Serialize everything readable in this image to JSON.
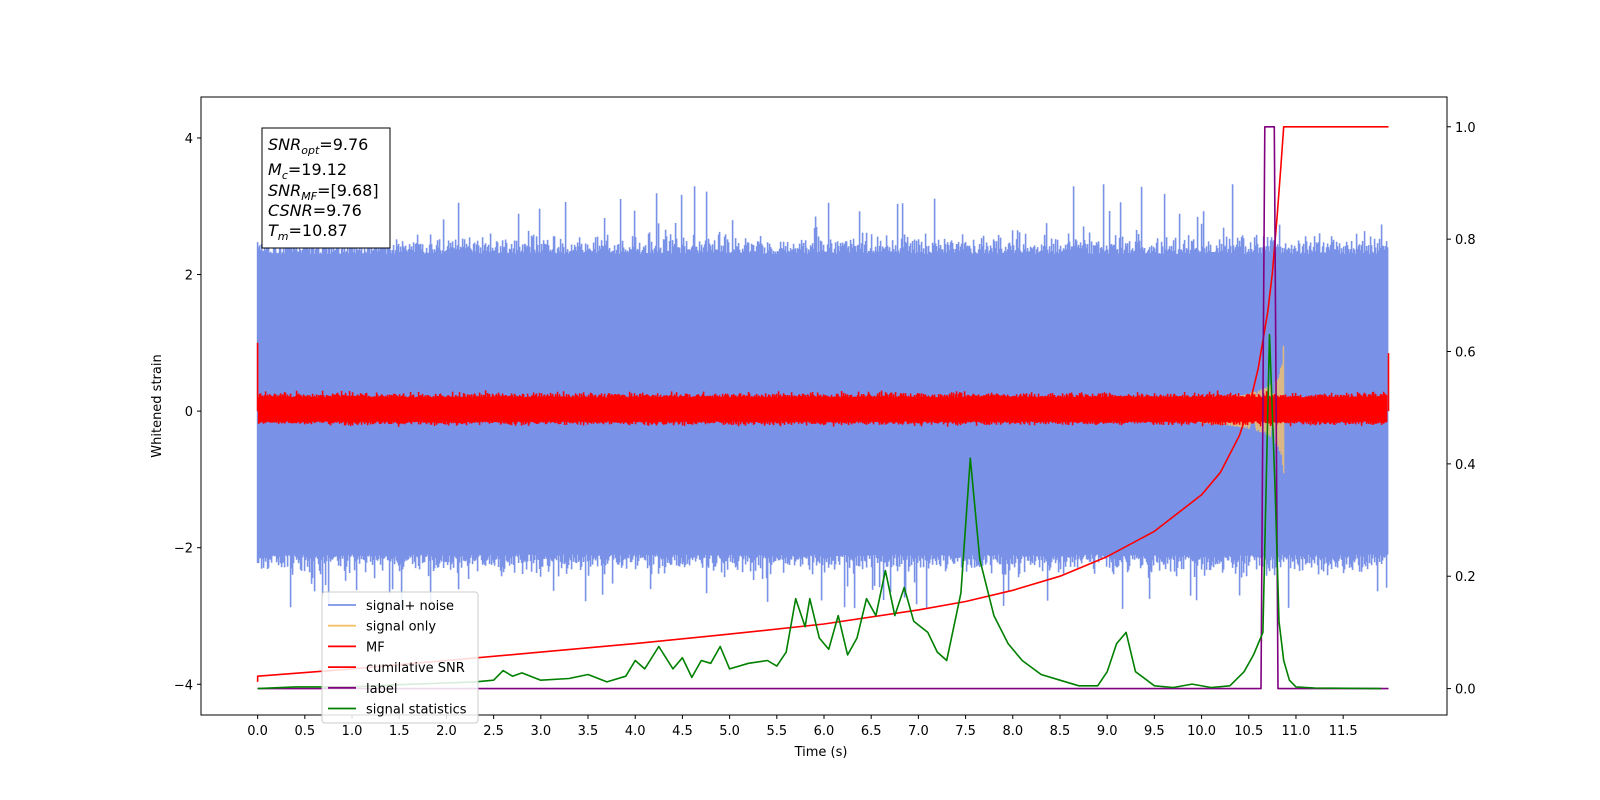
{
  "chart_data": {
    "type": "line",
    "xlabel": "Time (s)",
    "ylabel": "Whitened strain",
    "xlim": [
      -0.6,
      12.6
    ],
    "ylim": [
      -4.45,
      4.6
    ],
    "y2lim": [
      -0.047,
      1.053
    ],
    "x_ticks": [
      "0.0",
      "0.5",
      "1.0",
      "1.5",
      "2.0",
      "2.5",
      "3.0",
      "3.5",
      "4.0",
      "4.5",
      "5.0",
      "5.5",
      "6.0",
      "6.5",
      "7.0",
      "7.5",
      "8.0",
      "8.5",
      "9.0",
      "9.5",
      "10.0",
      "10.5",
      "11.0",
      "11.5"
    ],
    "y_ticks": [
      "4",
      "2",
      "0",
      "−2",
      "−4"
    ],
    "y2_ticks": [
      "1.0",
      "0.8",
      "0.6",
      "0.4",
      "0.2",
      "0.0"
    ],
    "info_box": {
      "snr_opt": {
        "main": "SNR",
        "sub": "opt",
        "value": "=9.76"
      },
      "mc": {
        "main": "M",
        "sub": "c",
        "value": "=19.12"
      },
      "snr_mf": {
        "main": "SNR",
        "sub": "MF",
        "value": "=[9.68]"
      },
      "csnr": {
        "main": "CSNR",
        "value": "=9.76"
      },
      "tm": {
        "main": "T",
        "sub": "m",
        "value": "=10.87"
      }
    },
    "legend": {
      "position": "lower-left",
      "entries": [
        {
          "label": "signal+ noise",
          "color": "#7992e8"
        },
        {
          "label": "signal only",
          "color": "#f5c26b"
        },
        {
          "label": "MF",
          "color": "#ff0000"
        },
        {
          "label": "cumilative SNR",
          "color": "#ff0000"
        },
        {
          "label": "label",
          "color": "#800080"
        },
        {
          "label": "signal statistics",
          "color": "#008000"
        }
      ]
    },
    "series": [
      {
        "name": "signal+ noise",
        "axis": "left",
        "color": "#7992e8",
        "kind": "noise band",
        "x_range": [
          0.0,
          11.98
        ],
        "typical": [
          -2.1,
          2.3
        ],
        "min": -3.7,
        "max": 4.15
      },
      {
        "name": "signal only",
        "axis": "left",
        "color": "#f5c26b",
        "kind": "chirp",
        "x_range": [
          9.7,
          10.87
        ],
        "peak_amplitude": 1.0
      },
      {
        "name": "MF",
        "axis": "left",
        "color": "#ff0000",
        "kind": "noise band",
        "x_range": [
          0.0,
          11.98
        ],
        "typical": [
          -0.15,
          0.2
        ],
        "start": 1.0,
        "end": 0.85
      },
      {
        "name": "cumilative SNR",
        "axis": "right",
        "color": "#ff0000",
        "x": [
          0.0,
          0.001,
          1,
          2,
          3,
          4,
          5,
          6,
          7,
          7.5,
          8,
          8.5,
          9,
          9.5,
          10,
          10.2,
          10.4,
          10.5,
          10.6,
          10.7,
          10.75,
          10.8,
          10.84,
          10.87,
          10.9,
          11.98
        ],
        "y": [
          0.012,
          0.022,
          0.035,
          0.05,
          0.065,
          0.08,
          0.097,
          0.115,
          0.14,
          0.155,
          0.175,
          0.2,
          0.235,
          0.28,
          0.345,
          0.385,
          0.45,
          0.5,
          0.57,
          0.67,
          0.74,
          0.84,
          0.93,
          1.0,
          1.0,
          1.0
        ]
      },
      {
        "name": "label",
        "axis": "right",
        "color": "#800080",
        "x": [
          0.0,
          10.63,
          10.67,
          10.77,
          10.81,
          11.98
        ],
        "y": [
          0.0,
          0.0,
          1.0,
          1.0,
          0.0,
          0.0
        ]
      },
      {
        "name": "signal statistics",
        "axis": "right",
        "color": "#008000",
        "x": [
          0.0,
          0.4,
          1.0,
          1.5,
          2.0,
          2.3,
          2.5,
          2.6,
          2.7,
          2.8,
          3.0,
          3.3,
          3.5,
          3.7,
          3.9,
          4.0,
          4.1,
          4.25,
          4.4,
          4.5,
          4.6,
          4.7,
          4.8,
          4.9,
          5.0,
          5.2,
          5.4,
          5.5,
          5.6,
          5.7,
          5.8,
          5.85,
          5.95,
          6.05,
          6.15,
          6.25,
          6.35,
          6.45,
          6.55,
          6.65,
          6.75,
          6.85,
          6.95,
          7.1,
          7.2,
          7.3,
          7.45,
          7.55,
          7.65,
          7.8,
          7.95,
          8.1,
          8.3,
          8.5,
          8.7,
          8.9,
          9.0,
          9.1,
          9.2,
          9.3,
          9.5,
          9.7,
          9.9,
          10.1,
          10.3,
          10.45,
          10.55,
          10.65,
          10.72,
          10.78,
          10.82,
          10.87,
          10.93,
          11.0,
          11.2,
          11.9
        ],
        "y": [
          0.0,
          0.003,
          0.003,
          0.007,
          0.01,
          0.012,
          0.015,
          0.032,
          0.022,
          0.028,
          0.015,
          0.018,
          0.025,
          0.012,
          0.022,
          0.05,
          0.035,
          0.075,
          0.035,
          0.055,
          0.02,
          0.05,
          0.045,
          0.075,
          0.035,
          0.045,
          0.05,
          0.04,
          0.065,
          0.16,
          0.11,
          0.16,
          0.09,
          0.07,
          0.13,
          0.06,
          0.09,
          0.16,
          0.13,
          0.21,
          0.13,
          0.18,
          0.12,
          0.1,
          0.065,
          0.05,
          0.17,
          0.41,
          0.23,
          0.13,
          0.08,
          0.05,
          0.025,
          0.015,
          0.005,
          0.005,
          0.03,
          0.08,
          0.1,
          0.03,
          0.005,
          0.002,
          0.008,
          0.002,
          0.005,
          0.03,
          0.06,
          0.1,
          0.63,
          0.35,
          0.12,
          0.05,
          0.015,
          0.003,
          0.001,
          0.0
        ]
      }
    ]
  }
}
